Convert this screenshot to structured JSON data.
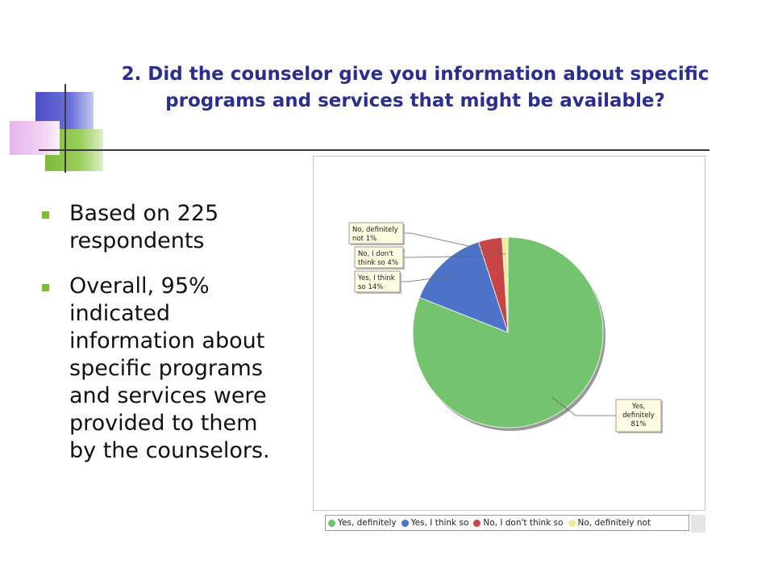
{
  "title": {
    "line1": "2. Did the counselor give you information about specific",
    "line2": "programs and services that might be available?"
  },
  "bullets": [
    {
      "text": "Based on 225\nrespondents"
    },
    {
      "text": "Overall, 95%\nindicated\ninformation about\nspecific programs\nand services were\nprovided to them\nby the counselors."
    }
  ],
  "chart_data": {
    "type": "pie",
    "title": "",
    "slices": [
      {
        "name": "Yes, definitely",
        "value": 81,
        "color": "#73c36f",
        "label_line1": "Yes,",
        "label_line2": "definitely",
        "label_line3": "81%"
      },
      {
        "name": "Yes, I think so",
        "value": 14,
        "color": "#4d73c9",
        "label_line1": "Yes, I think",
        "label_line2": "so    14%"
      },
      {
        "name": "No, I don't think so",
        "value": 4,
        "color": "#c94545",
        "label_line1": "No, I don't",
        "label_line2": "think so    4%"
      },
      {
        "name": "No, definitely not",
        "value": 1,
        "color": "#f3eb9c",
        "label_line1": "No, definitely",
        "label_line2": "not    1%"
      }
    ],
    "legend": [
      "Yes, definitely",
      "Yes, I think so",
      "No, I don't think so",
      "No, definitely not"
    ],
    "legend_position": "bottom"
  }
}
